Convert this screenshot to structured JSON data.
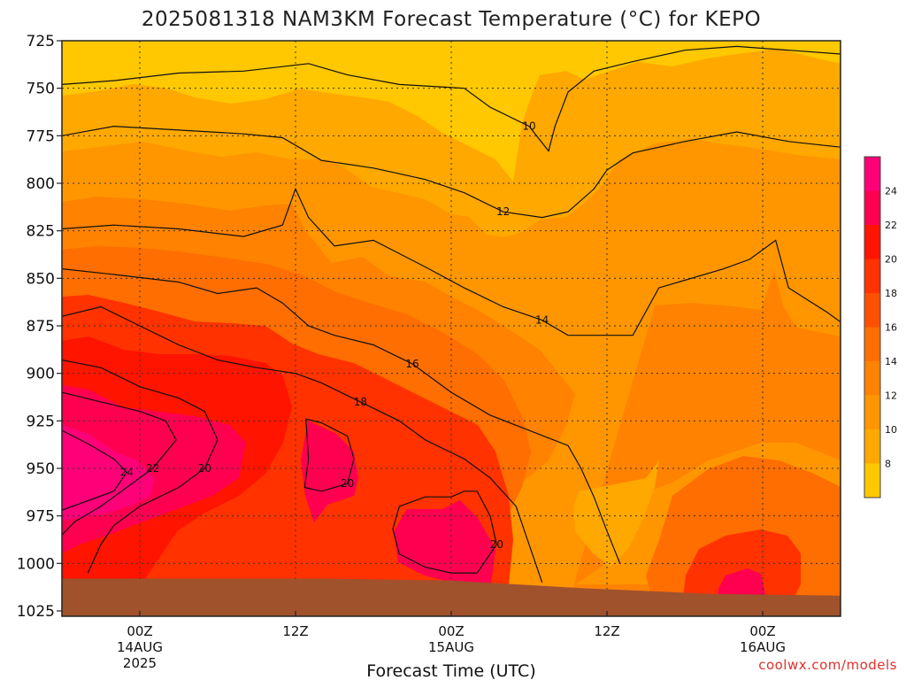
{
  "title": "2025081318 NAM3KM Forecast Temperature (°C) for KEPO",
  "credit": "coolwx.com/models",
  "colors": {
    "ground": "#a0522d",
    "grid": "#333333",
    "levels": [
      "#ffc800",
      "#ffa800",
      "#ff9600",
      "#ff8200",
      "#ff6e00",
      "#ff5000",
      "#ff3200",
      "#ff1400",
      "#ff0050",
      "#ff0078"
    ]
  },
  "chart_data": {
    "type": "heatmap",
    "title": "2025081318 NAM3KM Forecast Temperature (°C) for KEPO",
    "xlabel": "Forecast Time (UTC)",
    "ylabel": "",
    "x_ticks": [
      {
        "hour": 6,
        "label": "00Z",
        "sub1": "14AUG",
        "sub2": "2025"
      },
      {
        "hour": 18,
        "label": "12Z",
        "sub1": "",
        "sub2": ""
      },
      {
        "hour": 30,
        "label": "00Z",
        "sub1": "15AUG",
        "sub2": ""
      },
      {
        "hour": 42,
        "label": "12Z",
        "sub1": "",
        "sub2": ""
      },
      {
        "hour": 54,
        "label": "00Z",
        "sub1": "16AUG",
        "sub2": ""
      }
    ],
    "x_range_hours": [
      0,
      60
    ],
    "y_ticks": [
      725,
      750,
      775,
      800,
      825,
      850,
      875,
      900,
      925,
      950,
      975,
      1000,
      1025
    ],
    "y_range_hPa": [
      725,
      1025
    ],
    "y_reversed": true,
    "grid": true,
    "colorbar_ticks": [
      "8",
      "10",
      "12",
      "14",
      "16",
      "18",
      "20",
      "22",
      "24"
    ],
    "contour_levels": [
      8,
      10,
      12,
      14,
      16,
      18,
      20,
      22,
      24
    ],
    "contours": [
      {
        "label": "10",
        "points": [
          [
            0,
            748
          ],
          [
            4,
            746
          ],
          [
            9,
            742
          ],
          [
            14,
            741
          ],
          [
            19,
            737
          ],
          [
            22,
            743
          ],
          [
            26,
            748
          ],
          [
            31,
            750
          ],
          [
            33,
            760
          ],
          [
            36,
            770
          ],
          [
            37.5,
            783
          ],
          [
            38,
            770
          ],
          [
            39,
            752
          ],
          [
            41,
            741
          ],
          [
            44,
            736
          ],
          [
            48,
            730
          ],
          [
            52,
            728
          ],
          [
            56,
            730
          ],
          [
            60,
            732
          ]
        ]
      },
      {
        "label": "12",
        "points": [
          [
            0,
            775
          ],
          [
            4,
            770
          ],
          [
            9,
            772
          ],
          [
            14,
            774
          ],
          [
            17,
            776
          ],
          [
            20,
            788
          ],
          [
            24,
            792
          ],
          [
            28,
            798
          ],
          [
            31,
            805
          ],
          [
            34,
            815
          ],
          [
            37,
            818
          ],
          [
            39,
            815
          ],
          [
            41,
            803
          ],
          [
            42,
            793
          ],
          [
            44,
            784
          ],
          [
            48,
            778
          ],
          [
            52,
            773
          ],
          [
            56,
            778
          ],
          [
            60,
            781
          ]
        ]
      },
      {
        "label": "14",
        "points": [
          [
            0,
            824
          ],
          [
            4,
            822
          ],
          [
            9,
            824
          ],
          [
            14,
            828
          ],
          [
            17,
            822
          ],
          [
            18,
            803
          ],
          [
            19,
            818
          ],
          [
            21,
            833
          ],
          [
            24,
            830
          ],
          [
            28,
            844
          ],
          [
            31,
            855
          ],
          [
            34,
            865
          ],
          [
            37,
            872
          ],
          [
            39,
            880
          ],
          [
            41,
            880
          ],
          [
            44,
            880
          ],
          [
            46,
            855
          ],
          [
            48,
            851
          ],
          [
            51,
            845
          ],
          [
            53,
            840
          ],
          [
            55,
            830
          ],
          [
            56,
            855
          ],
          [
            59,
            868
          ],
          [
            60,
            873
          ]
        ]
      },
      {
        "label": "16",
        "points": [
          [
            0,
            845
          ],
          [
            4,
            848
          ],
          [
            9,
            852
          ],
          [
            12,
            858
          ],
          [
            15,
            855
          ],
          [
            17,
            863
          ],
          [
            19,
            875
          ],
          [
            21,
            880
          ],
          [
            24,
            885
          ],
          [
            27,
            895
          ],
          [
            30,
            910
          ],
          [
            33,
            922
          ],
          [
            36,
            930
          ],
          [
            39,
            938
          ],
          [
            40,
            950
          ],
          [
            41,
            965
          ],
          [
            42,
            983
          ],
          [
            43,
            1000
          ]
        ]
      },
      {
        "label": "18",
        "points": [
          [
            0,
            870
          ],
          [
            3,
            865
          ],
          [
            6,
            875
          ],
          [
            9,
            885
          ],
          [
            12,
            893
          ],
          [
            15,
            897
          ],
          [
            18,
            900
          ],
          [
            20,
            905
          ],
          [
            23,
            915
          ],
          [
            26,
            925
          ],
          [
            28,
            935
          ],
          [
            31,
            945
          ],
          [
            33,
            955
          ],
          [
            35,
            970
          ],
          [
            36,
            990
          ],
          [
            37,
            1010
          ]
        ]
      },
      {
        "label": "20",
        "points": [
          [
            0,
            893
          ],
          [
            3,
            897
          ],
          [
            6,
            907
          ],
          [
            9,
            913
          ],
          [
            11,
            920
          ],
          [
            12,
            935
          ],
          [
            11,
            950
          ],
          [
            9,
            960
          ],
          [
            6,
            970
          ],
          [
            4,
            980
          ],
          [
            3,
            990
          ],
          [
            2,
            1005
          ]
        ]
      },
      {
        "label": "20",
        "points": [
          [
            18.8,
            924
          ],
          [
            20,
            926
          ],
          [
            22,
            933
          ],
          [
            22.5,
            945
          ],
          [
            22,
            958
          ],
          [
            20,
            962
          ],
          [
            18.7,
            960
          ],
          [
            19,
            945
          ],
          [
            18.8,
            924
          ]
        ]
      },
      {
        "label": "20",
        "points": [
          [
            26,
            970
          ],
          [
            28,
            965
          ],
          [
            30,
            965
          ],
          [
            31,
            962
          ],
          [
            32,
            962
          ],
          [
            33,
            975
          ],
          [
            33.5,
            990
          ],
          [
            32,
            1005
          ],
          [
            30,
            1005
          ],
          [
            28,
            1002
          ],
          [
            26,
            995
          ],
          [
            25.5,
            982
          ],
          [
            26,
            970
          ]
        ]
      },
      {
        "label": "22",
        "points": [
          [
            0,
            910
          ],
          [
            3,
            915
          ],
          [
            6,
            920
          ],
          [
            8,
            925
          ],
          [
            8.8,
            935
          ],
          [
            7,
            950
          ],
          [
            5,
            960
          ],
          [
            3,
            970
          ],
          [
            1,
            978
          ],
          [
            0,
            985
          ]
        ]
      },
      {
        "label": "24",
        "points": [
          [
            0,
            930
          ],
          [
            2,
            937
          ],
          [
            4,
            945
          ],
          [
            5,
            952
          ],
          [
            4,
            962
          ],
          [
            2,
            967
          ],
          [
            0,
            972
          ]
        ]
      }
    ],
    "ground_surface_hPa": [
      [
        0,
        1008
      ],
      [
        10,
        1008
      ],
      [
        20,
        1008
      ],
      [
        30,
        1009
      ],
      [
        40,
        1013
      ],
      [
        50,
        1016
      ],
      [
        60,
        1017
      ]
    ]
  }
}
